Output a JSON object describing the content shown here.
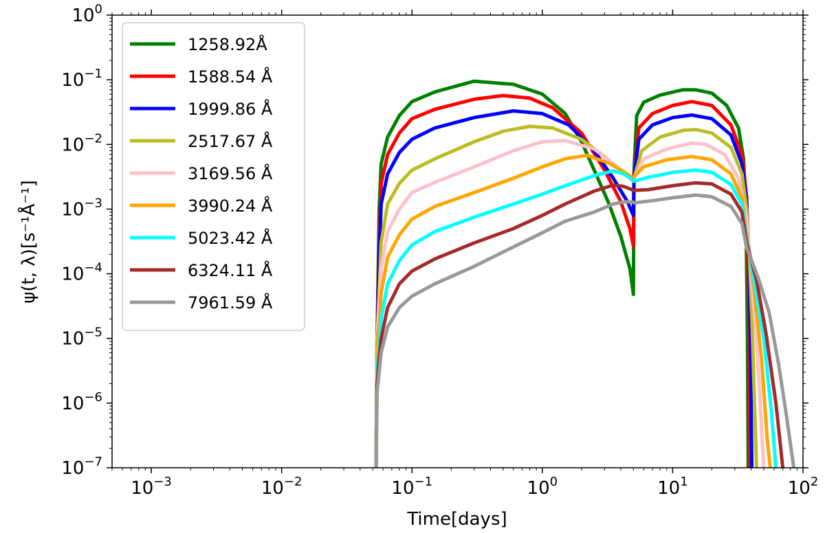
{
  "chart_data": {
    "type": "line",
    "title": "",
    "xlabel": "Time[days]",
    "ylabel": "ψ(t, λ)[s⁻¹Å⁻¹]",
    "xscale": "log",
    "yscale": "log",
    "xlim": [
      0.0005,
      100
    ],
    "ylim": [
      1e-07,
      1
    ],
    "x_ticks": [
      {
        "value": 0.001,
        "base": "10",
        "exp": "−3"
      },
      {
        "value": 0.01,
        "base": "10",
        "exp": "−2"
      },
      {
        "value": 0.1,
        "base": "10",
        "exp": "−1"
      },
      {
        "value": 1,
        "base": "10",
        "exp": "0"
      },
      {
        "value": 10,
        "base": "10",
        "exp": "1"
      },
      {
        "value": 100,
        "base": "10",
        "exp": "2"
      }
    ],
    "y_ticks": [
      {
        "value": 1e-07,
        "base": "10",
        "exp": "−7"
      },
      {
        "value": 1e-06,
        "base": "10",
        "exp": "−6"
      },
      {
        "value": 1e-05,
        "base": "10",
        "exp": "−5"
      },
      {
        "value": 0.0001,
        "base": "10",
        "exp": "−4"
      },
      {
        "value": 0.001,
        "base": "10",
        "exp": "−3"
      },
      {
        "value": 0.01,
        "base": "10",
        "exp": "−2"
      },
      {
        "value": 0.1,
        "base": "10",
        "exp": "−1"
      },
      {
        "value": 1,
        "base": "10",
        "exp": "0"
      }
    ],
    "legend_position": "top-left",
    "series": [
      {
        "name": "1258.92Å",
        "color": "#008000",
        "points": [
          [
            0.053,
            1e-07
          ],
          [
            0.054,
            1e-05
          ],
          [
            0.056,
            0.001
          ],
          [
            0.058,
            0.005
          ],
          [
            0.065,
            0.013
          ],
          [
            0.08,
            0.028
          ],
          [
            0.1,
            0.046
          ],
          [
            0.15,
            0.065
          ],
          [
            0.3,
            0.095
          ],
          [
            0.6,
            0.085
          ],
          [
            1.0,
            0.06
          ],
          [
            1.5,
            0.03
          ],
          [
            2.0,
            0.011
          ],
          [
            2.5,
            0.004
          ],
          [
            3.2,
            0.0013
          ],
          [
            4.0,
            0.00038
          ],
          [
            4.7,
            0.00012
          ],
          [
            5.0,
            4.8e-05
          ],
          [
            5.05,
            0.004
          ],
          [
            5.3,
            0.028
          ],
          [
            6.0,
            0.045
          ],
          [
            8.0,
            0.058
          ],
          [
            12.0,
            0.07
          ],
          [
            15.0,
            0.07
          ],
          [
            20.0,
            0.062
          ],
          [
            26.0,
            0.04
          ],
          [
            32.0,
            0.018
          ],
          [
            35.0,
            0.006
          ],
          [
            36.5,
            0.001
          ],
          [
            37.0,
            0.0001
          ],
          [
            37.5,
            1e-05
          ],
          [
            38.0,
            1e-07
          ]
        ]
      },
      {
        "name": "1588.54 Å",
        "color": "#ff0000",
        "points": [
          [
            0.053,
            1e-07
          ],
          [
            0.054,
            1e-05
          ],
          [
            0.056,
            0.0003
          ],
          [
            0.058,
            0.0025
          ],
          [
            0.065,
            0.007
          ],
          [
            0.08,
            0.015
          ],
          [
            0.1,
            0.025
          ],
          [
            0.15,
            0.035
          ],
          [
            0.3,
            0.05
          ],
          [
            0.5,
            0.057
          ],
          [
            0.8,
            0.052
          ],
          [
            1.2,
            0.037
          ],
          [
            2.0,
            0.015
          ],
          [
            3.0,
            0.004
          ],
          [
            4.0,
            0.0013
          ],
          [
            4.7,
            0.0005
          ],
          [
            5.0,
            0.00027
          ],
          [
            5.05,
            0.0035
          ],
          [
            5.5,
            0.018
          ],
          [
            7.0,
            0.03
          ],
          [
            10.0,
            0.04
          ],
          [
            14.0,
            0.046
          ],
          [
            20.0,
            0.04
          ],
          [
            28.0,
            0.02
          ],
          [
            34.0,
            0.007
          ],
          [
            37.0,
            0.0015
          ],
          [
            38.0,
            0.0001
          ],
          [
            38.7,
            1e-05
          ],
          [
            39.3,
            1e-07
          ]
        ]
      },
      {
        "name": "1999.86 Å",
        "color": "#0000ff",
        "points": [
          [
            0.053,
            1e-07
          ],
          [
            0.054,
            1e-05
          ],
          [
            0.056,
            0.00015
          ],
          [
            0.058,
            0.0012
          ],
          [
            0.065,
            0.0035
          ],
          [
            0.08,
            0.0075
          ],
          [
            0.1,
            0.012
          ],
          [
            0.15,
            0.018
          ],
          [
            0.3,
            0.026
          ],
          [
            0.6,
            0.033
          ],
          [
            1.0,
            0.03
          ],
          [
            1.6,
            0.02
          ],
          [
            2.5,
            0.008
          ],
          [
            3.5,
            0.003
          ],
          [
            4.5,
            0.0013
          ],
          [
            5.0,
            0.0008
          ],
          [
            5.05,
            0.003
          ],
          [
            5.5,
            0.012
          ],
          [
            7.0,
            0.02
          ],
          [
            10.0,
            0.026
          ],
          [
            14.0,
            0.0285
          ],
          [
            20.0,
            0.025
          ],
          [
            28.0,
            0.014
          ],
          [
            34.0,
            0.005
          ],
          [
            37.0,
            0.0013
          ],
          [
            38.5,
            0.0002
          ],
          [
            39.5,
            1e-05
          ],
          [
            40.5,
            1e-07
          ]
        ]
      },
      {
        "name": "2517.67 Å",
        "color": "#bcbd22",
        "points": [
          [
            0.053,
            1e-07
          ],
          [
            0.054,
            1e-05
          ],
          [
            0.056,
            5e-05
          ],
          [
            0.058,
            0.0003
          ],
          [
            0.065,
            0.0012
          ],
          [
            0.08,
            0.0025
          ],
          [
            0.1,
            0.004
          ],
          [
            0.15,
            0.006
          ],
          [
            0.3,
            0.011
          ],
          [
            0.5,
            0.016
          ],
          [
            0.8,
            0.019
          ],
          [
            1.2,
            0.018
          ],
          [
            2.0,
            0.012
          ],
          [
            3.0,
            0.0065
          ],
          [
            4.0,
            0.004
          ],
          [
            5.0,
            0.0027
          ],
          [
            5.05,
            0.003
          ],
          [
            5.8,
            0.008
          ],
          [
            8.0,
            0.013
          ],
          [
            12.0,
            0.0165
          ],
          [
            15.0,
            0.017
          ],
          [
            20.0,
            0.015
          ],
          [
            28.0,
            0.009
          ],
          [
            34.0,
            0.0035
          ],
          [
            37.0,
            0.001
          ],
          [
            39.0,
            0.00015
          ],
          [
            41.0,
            1e-05
          ],
          [
            44.0,
            1e-07
          ]
        ]
      },
      {
        "name": "3169.56 Å",
        "color": "#ffc0cb",
        "points": [
          [
            0.053,
            1e-07
          ],
          [
            0.054,
            1e-05
          ],
          [
            0.056,
            3e-05
          ],
          [
            0.058,
            0.00012
          ],
          [
            0.065,
            0.00045
          ],
          [
            0.08,
            0.001
          ],
          [
            0.1,
            0.0018
          ],
          [
            0.15,
            0.0026
          ],
          [
            0.3,
            0.0045
          ],
          [
            0.6,
            0.008
          ],
          [
            1.0,
            0.011
          ],
          [
            1.5,
            0.0115
          ],
          [
            2.5,
            0.0085
          ],
          [
            3.5,
            0.005
          ],
          [
            4.5,
            0.0033
          ],
          [
            5.0,
            0.0028
          ],
          [
            5.05,
            0.003
          ],
          [
            6.0,
            0.006
          ],
          [
            9.0,
            0.0085
          ],
          [
            14.0,
            0.0105
          ],
          [
            18.0,
            0.01
          ],
          [
            25.0,
            0.007
          ],
          [
            32.0,
            0.003
          ],
          [
            37.0,
            0.0007
          ],
          [
            40.0,
            0.0001
          ],
          [
            44.0,
            1e-05
          ],
          [
            50.0,
            1e-07
          ]
        ]
      },
      {
        "name": "3990.24 Å",
        "color": "#ffa500",
        "points": [
          [
            0.053,
            1e-07
          ],
          [
            0.054,
            1e-05
          ],
          [
            0.056,
            1.5e-05
          ],
          [
            0.058,
            5e-05
          ],
          [
            0.065,
            0.00018
          ],
          [
            0.08,
            0.0004
          ],
          [
            0.1,
            0.0007
          ],
          [
            0.15,
            0.0011
          ],
          [
            0.3,
            0.0018
          ],
          [
            0.6,
            0.003
          ],
          [
            1.0,
            0.0045
          ],
          [
            1.5,
            0.006
          ],
          [
            2.2,
            0.0068
          ],
          [
            3.2,
            0.0052
          ],
          [
            4.2,
            0.0038
          ],
          [
            5.0,
            0.003
          ],
          [
            5.05,
            0.0032
          ],
          [
            6.0,
            0.0045
          ],
          [
            9.0,
            0.0058
          ],
          [
            14.0,
            0.0065
          ],
          [
            20.0,
            0.0058
          ],
          [
            28.0,
            0.0035
          ],
          [
            34.0,
            0.0015
          ],
          [
            37.0,
            0.0004
          ],
          [
            42.0,
            6e-05
          ],
          [
            48.0,
            5e-06
          ],
          [
            53.0,
            3e-07
          ],
          [
            56.0,
            1e-07
          ]
        ]
      },
      {
        "name": "5023.42 Å",
        "color": "#00ffff",
        "points": [
          [
            0.053,
            1e-07
          ],
          [
            0.054,
            3e-06
          ],
          [
            0.056,
            8e-06
          ],
          [
            0.058,
            2e-05
          ],
          [
            0.065,
            7e-05
          ],
          [
            0.08,
            0.00016
          ],
          [
            0.1,
            0.00028
          ],
          [
            0.15,
            0.00045
          ],
          [
            0.3,
            0.00075
          ],
          [
            0.6,
            0.0012
          ],
          [
            1.0,
            0.0017
          ],
          [
            1.5,
            0.0023
          ],
          [
            2.5,
            0.0033
          ],
          [
            3.5,
            0.0039
          ],
          [
            4.2,
            0.0035
          ],
          [
            5.0,
            0.0028
          ],
          [
            5.05,
            0.0027
          ],
          [
            6.5,
            0.0031
          ],
          [
            10.0,
            0.0037
          ],
          [
            15.0,
            0.004
          ],
          [
            20.0,
            0.0037
          ],
          [
            28.0,
            0.0024
          ],
          [
            34.0,
            0.0012
          ],
          [
            37.0,
            0.00035
          ],
          [
            42.0,
            8e-05
          ],
          [
            50.0,
            1e-05
          ],
          [
            57.0,
            8e-07
          ],
          [
            62.0,
            1e-07
          ]
        ]
      },
      {
        "name": "6324.11 Å",
        "color": "#a52a2a",
        "points": [
          [
            0.053,
            1e-07
          ],
          [
            0.054,
            2e-06
          ],
          [
            0.056,
            5e-06
          ],
          [
            0.058,
            1e-05
          ],
          [
            0.065,
            3e-05
          ],
          [
            0.08,
            7e-05
          ],
          [
            0.1,
            0.00011
          ],
          [
            0.15,
            0.00017
          ],
          [
            0.3,
            0.0003
          ],
          [
            0.6,
            0.0005
          ],
          [
            1.0,
            0.0008
          ],
          [
            1.5,
            0.0012
          ],
          [
            2.5,
            0.0019
          ],
          [
            3.5,
            0.00235
          ],
          [
            4.2,
            0.00225
          ],
          [
            5.0,
            0.00195
          ],
          [
            5.05,
            0.00195
          ],
          [
            6.5,
            0.002
          ],
          [
            10.0,
            0.0023
          ],
          [
            15.0,
            0.00255
          ],
          [
            20.0,
            0.00245
          ],
          [
            28.0,
            0.0017
          ],
          [
            34.0,
            0.0009
          ],
          [
            37.0,
            0.0003
          ],
          [
            44.0,
            8e-05
          ],
          [
            52.0,
            1.2e-05
          ],
          [
            62.0,
            1e-06
          ],
          [
            70.0,
            1e-07
          ]
        ]
      },
      {
        "name": "7961.59 Å",
        "color": "#999999",
        "points": [
          [
            0.053,
            1e-07
          ],
          [
            0.054,
            1.5e-06
          ],
          [
            0.056,
            3e-06
          ],
          [
            0.058,
            6e-06
          ],
          [
            0.065,
            1.5e-05
          ],
          [
            0.08,
            3e-05
          ],
          [
            0.1,
            4.5e-05
          ],
          [
            0.15,
            7e-05
          ],
          [
            0.3,
            0.00013
          ],
          [
            0.6,
            0.00026
          ],
          [
            1.0,
            0.00043
          ],
          [
            1.5,
            0.00065
          ],
          [
            2.5,
            0.0009
          ],
          [
            3.5,
            0.0012
          ],
          [
            4.3,
            0.0013
          ],
          [
            5.0,
            0.00128
          ],
          [
            5.05,
            0.00125
          ],
          [
            7.0,
            0.00135
          ],
          [
            10.0,
            0.0015
          ],
          [
            15.0,
            0.00165
          ],
          [
            20.0,
            0.00155
          ],
          [
            28.0,
            0.0011
          ],
          [
            34.0,
            0.0006
          ],
          [
            37.0,
            0.00025
          ],
          [
            45.0,
            9e-05
          ],
          [
            55.0,
            2.5e-05
          ],
          [
            65.0,
            4e-06
          ],
          [
            75.0,
            6e-07
          ],
          [
            85.0,
            1e-07
          ]
        ]
      }
    ]
  }
}
